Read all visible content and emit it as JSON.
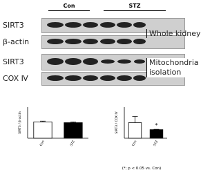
{
  "blot": {
    "groups": [
      "Con",
      "STZ"
    ],
    "rows": [
      "SIRT3",
      "β-actin",
      "SIRT3",
      "COX Ⅳ"
    ],
    "sections": [
      "Whole kidney",
      "Mitochondria isolation"
    ]
  },
  "chart_data": [
    {
      "type": "bar",
      "ylabel": "SIRT3 / β-actin",
      "categories": [
        "Con",
        "STZ"
      ],
      "values": [
        1.05,
        1.0
      ],
      "errors": [
        0.05,
        0.05
      ],
      "colors": [
        "#ffffff",
        "#000000"
      ],
      "ylim": [
        0,
        2
      ]
    },
    {
      "type": "bar",
      "ylabel": "SIRT3 / COX Ⅳ",
      "categories": [
        "Con",
        "STZ"
      ],
      "values": [
        1.0,
        0.55
      ],
      "errors": [
        0.4,
        0.02
      ],
      "colors": [
        "#ffffff",
        "#000000"
      ],
      "ylim": [
        0,
        2
      ],
      "annotation": "*",
      "footnote": "(*; p < 0.05 vs. Con)"
    }
  ]
}
